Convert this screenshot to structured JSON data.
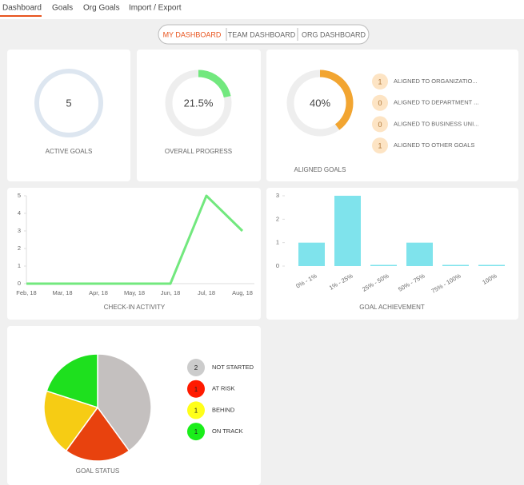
{
  "nav": {
    "tabs": [
      "Dashboard",
      "Goals",
      "Org Goals",
      "Import / Export"
    ],
    "active": 0
  },
  "views": {
    "options": [
      "MY DASHBOARD",
      "TEAM DASHBOARD",
      "ORG DASHBOARD"
    ],
    "active": 0
  },
  "active_goals": {
    "value": 5,
    "label": "ACTIVE GOALS"
  },
  "overall_progress": {
    "value": 21.5,
    "value_label": "21.5%",
    "label": "OVERALL PROGRESS",
    "color": "#72e87e"
  },
  "aligned_goals": {
    "value": 40,
    "value_label": "40%",
    "label": "ALIGNED GOALS",
    "color": "#f2a531",
    "items": [
      {
        "count": 1,
        "label": "ALIGNED TO ORGANIZATIO..."
      },
      {
        "count": 0,
        "label": "ALIGNED TO DEPARTMENT ..."
      },
      {
        "count": 0,
        "label": "ALIGNED TO BUSINESS UNI..."
      },
      {
        "count": 1,
        "label": "ALIGNED TO OTHER GOALS"
      }
    ]
  },
  "chart_data": [
    {
      "type": "line",
      "title": "CHECK-IN ACTIVITY",
      "categories": [
        "Feb, 18",
        "Mar, 18",
        "Apr, 18",
        "May, 18",
        "Jun, 18",
        "Jul, 18",
        "Aug, 18"
      ],
      "values": [
        0,
        0,
        0,
        0,
        0,
        5,
        3
      ],
      "color": "#72e87e",
      "ylim": [
        0,
        5
      ],
      "yticks": [
        0,
        1,
        2,
        3,
        4,
        5
      ]
    },
    {
      "type": "bar",
      "title": "GOAL ACHIEVEMENT",
      "categories": [
        "0% - 1%",
        "1% - 25%",
        "25% - 50%",
        "50% - 75%",
        "75% - 100%",
        "100%"
      ],
      "values": [
        1,
        3,
        0,
        1,
        0,
        0
      ],
      "color": "#7fe3ec",
      "ylim": [
        0,
        3
      ],
      "yticks": [
        0,
        1,
        2,
        3
      ]
    },
    {
      "type": "pie",
      "title": "GOAL STATUS",
      "categories": [
        "NOT STARTED",
        "AT RISK",
        "BEHIND",
        "ON TRACK"
      ],
      "values": [
        2,
        1,
        1,
        1
      ],
      "colors": [
        "#c4c0bf",
        "#e8420e",
        "#f6cc14",
        "#1ee01e"
      ],
      "legend_colors": [
        "#cccccc",
        "#ff1a00",
        "#ffff1a",
        "#1aee1a"
      ]
    }
  ]
}
